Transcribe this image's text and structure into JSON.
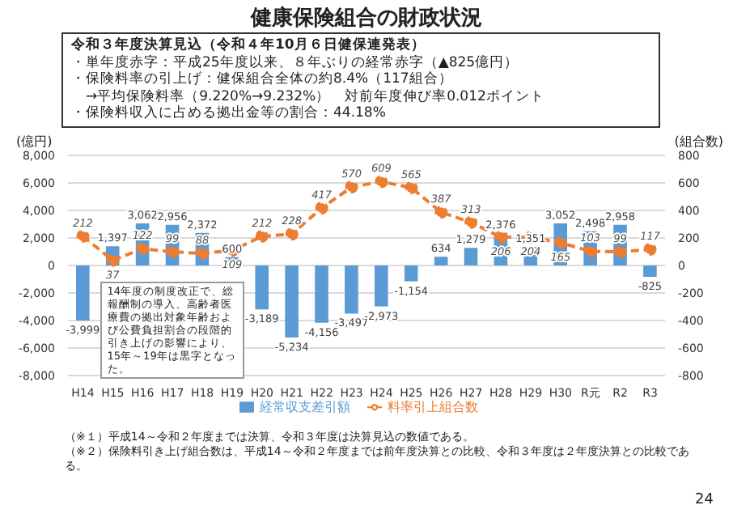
{
  "chart_data": {
    "type": "bar",
    "title": "健康保険組合の財政状況",
    "subtitle": "令和３年度決算見込（令和４年10月６日健保連発表）",
    "annotations": [
      "・単年度赤字：平成25年度以来、８年ぶりの経常赤字（▲825億円）",
      "・保険料率の引上げ：健保組合全体の約8.4%（117組合）",
      "　→平均保険料率（9.220%→9.232%）　対前年度伸び率0.012ポイント",
      "・保険料収入に占める拠出金等の割合：44.18%",
      "14年度の制度改正で、総報酬制の導入、高齢者医療費の拠出対象年齢および公費負担割合の段階的引き上げの影響により、15年～19年は黒字となった。",
      "（※１）平成14～令和２年度までは決算、令和３年度は決算見込の数値である。",
      "（※２）保険料引き上げ組合数は、平成14～令和２年度までは前年度決算との比較、令和３年度は２年度決算との比較である。",
      "24"
    ],
    "categories": [
      "H14",
      "H15",
      "H16",
      "H17",
      "H18",
      "H19",
      "H20",
      "H21",
      "H22",
      "H23",
      "H24",
      "H25",
      "H26",
      "H27",
      "H28",
      "H29",
      "H30",
      "R元",
      "R2",
      "R3"
    ],
    "series": [
      {
        "name": "経常収支差引額",
        "color": "#5b9bd5",
        "values": [
          -3999,
          1397,
          3062,
          2956,
          2372,
          600,
          -3189,
          -5234,
          -4156,
          -3497,
          -2973,
          -1154,
          634,
          1279,
          2376,
          1351,
          3052,
          2498,
          2958,
          -825
        ],
        "value_labels": [
          "-3,999",
          "1,397",
          "3,062",
          "2,956",
          "2,372",
          "600",
          "-3,189",
          "-5,234",
          "-4,156",
          "-3,497",
          "-2,973",
          "-1,154",
          "634",
          "1,279",
          "2,376",
          "1,351",
          "3,052",
          "2,498",
          "2,958",
          "-825"
        ]
      },
      {
        "name": "料率引上組合数",
        "type": "line",
        "axis": "y2",
        "color": "#ed7d31",
        "marker": "circle",
        "line_style": "dashed",
        "values": [
          212,
          37,
          122,
          99,
          88,
          109,
          212,
          228,
          417,
          570,
          609,
          565,
          387,
          313,
          206,
          204,
          165,
          103,
          99,
          117
        ]
      }
    ],
    "data_labels": true,
    "ylabel": "(億円)",
    "y2label": "(組合数)",
    "ylim": [
      -8000,
      8000
    ],
    "yticks": [
      {
        "value": -8000,
        "label": "-8,000"
      },
      {
        "value": -6000,
        "label": "-6,000"
      },
      {
        "value": -4000,
        "label": "-4,000"
      },
      {
        "value": -2000,
        "label": "-2,000"
      },
      0,
      {
        "value": 2000,
        "label": "2,000"
      },
      {
        "value": 4000,
        "label": "4,000"
      },
      {
        "value": 6000,
        "label": "6,000"
      },
      {
        "value": 8000,
        "label": "8,000"
      }
    ],
    "y2lim": [
      -800,
      800
    ],
    "y2ticks": [
      -800,
      -600,
      -400,
      -200,
      0,
      200,
      400,
      600,
      800
    ],
    "grid": "y",
    "legend": "bottom"
  }
}
